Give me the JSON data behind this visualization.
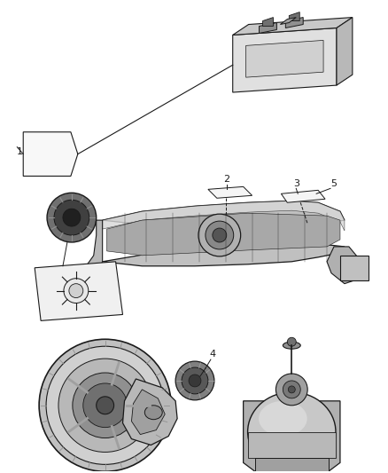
{
  "bg_color": "#ffffff",
  "fig_width": 4.38,
  "fig_height": 5.33,
  "dpi": 100,
  "line_color": "#1a1a1a",
  "label_font_size": 8,
  "gray_light": "#d8d8d8",
  "gray_mid": "#b0b0b0",
  "gray_dark": "#787878",
  "gray_darker": "#505050"
}
